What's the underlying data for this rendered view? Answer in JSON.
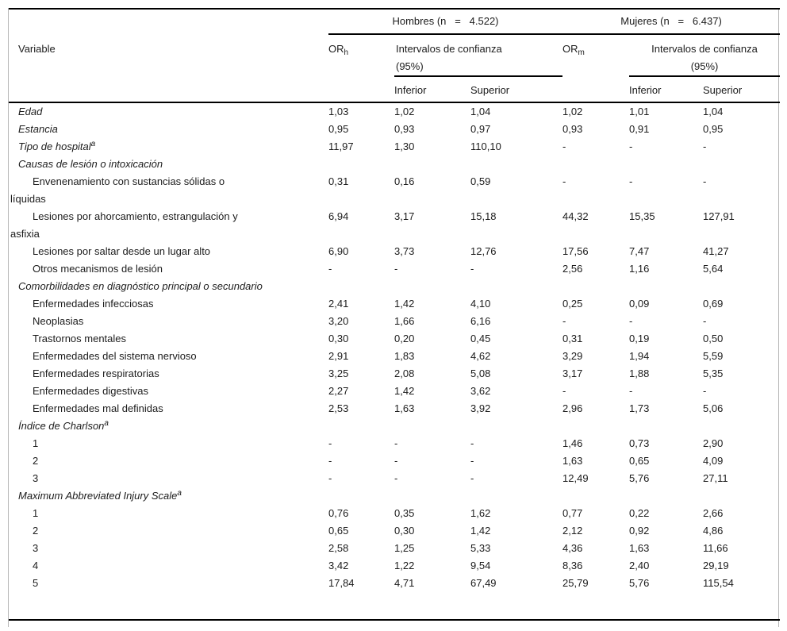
{
  "colors": {
    "rule": "#000000",
    "outer_border": "#b7b7b7",
    "text": "#1c1c1c"
  },
  "table": {
    "header": {
      "variable": "Variable",
      "groups": {
        "hombres": "Hombres (n   =   4.522)",
        "mujeres": "Mujeres (n   =   6.437)"
      },
      "or": "OR",
      "or_sub_h": "h",
      "or_sub_m": "m",
      "ci": "Intervalos de confianza",
      "ci_pct": "(95%)",
      "inferior": "Inferior",
      "superior": "Superior"
    },
    "rows": [
      {
        "label": "Edad",
        "values": [
          "1,03",
          "1,02",
          "1,04",
          "1,02",
          "1,01",
          "1,04"
        ]
      },
      {
        "label": "Estancia",
        "values": [
          "0,95",
          "0,93",
          "0,97",
          "0,93",
          "0,91",
          "0,95"
        ]
      },
      {
        "label": "Tipo de hospital",
        "sup": "a",
        "values": [
          "11,97",
          "1,30",
          "110,10",
          "-",
          "-",
          "-"
        ]
      },
      {
        "label": "Causas de lesión o intoxicación",
        "values": [
          "",
          "",
          "",
          "",
          "",
          ""
        ]
      },
      {
        "label": "Envenenamiento con sustancias sólidas o\nlíquidas",
        "values": [
          "0,31",
          "0,16",
          "0,59",
          "-",
          "-",
          "-"
        ]
      },
      {
        "label": "Lesiones por ahorcamiento, estrangulación y\nasfixia",
        "values": [
          "6,94",
          "3,17",
          "15,18",
          "44,32",
          "15,35",
          "127,91"
        ]
      },
      {
        "label": "Lesiones por saltar desde un lugar alto",
        "values": [
          "6,90",
          "3,73",
          "12,76",
          "17,56",
          "7,47",
          "41,27"
        ]
      },
      {
        "label": "Otros mecanismos de lesión",
        "values": [
          "-",
          "-",
          "-",
          "2,56",
          "1,16",
          "5,64"
        ]
      },
      {
        "label": "Comorbilidades en diagnóstico principal o secundario",
        "values": [
          "",
          "",
          "",
          "",
          "",
          ""
        ]
      },
      {
        "label": "Enfermedades infecciosas",
        "values": [
          "2,41",
          "1,42",
          "4,10",
          "0,25",
          "0,09",
          "0,69"
        ]
      },
      {
        "label": "Neoplasias",
        "values": [
          "3,20",
          "1,66",
          "6,16",
          "-",
          "-",
          "-"
        ]
      },
      {
        "label": "Trastornos mentales",
        "values": [
          "0,30",
          "0,20",
          "0,45",
          "0,31",
          "0,19",
          "0,50"
        ]
      },
      {
        "label": "Enfermedades del sistema nervioso",
        "values": [
          "2,91",
          "1,83",
          "4,62",
          "3,29",
          "1,94",
          "5,59"
        ]
      },
      {
        "label": "Enfermedades respiratorias",
        "values": [
          "3,25",
          "2,08",
          "5,08",
          "3,17",
          "1,88",
          "5,35"
        ]
      },
      {
        "label": "Enfermedades digestivas",
        "values": [
          "2,27",
          "1,42",
          "3,62",
          "-",
          "-",
          "-"
        ]
      },
      {
        "label": "Enfermedades mal definidas",
        "values": [
          "2,53",
          "1,63",
          "3,92",
          "2,96",
          "1,73",
          "5,06"
        ]
      },
      {
        "label": "Índice de Charlson",
        "sup": "a",
        "values": [
          "",
          "",
          "",
          "",
          "",
          ""
        ]
      },
      {
        "label": "1",
        "values": [
          "-",
          "-",
          "-",
          "1,46",
          "0,73",
          "2,90"
        ]
      },
      {
        "label": "2",
        "values": [
          "-",
          "-",
          "-",
          "1,63",
          "0,65",
          "4,09"
        ]
      },
      {
        "label": "3",
        "values": [
          "-",
          "-",
          "-",
          "12,49",
          "5,76",
          "27,11"
        ]
      },
      {
        "label": "Maximum Abbreviated Injury Scale",
        "sup": "a",
        "values": [
          "",
          "",
          "",
          "",
          "",
          ""
        ]
      },
      {
        "label": "1",
        "values": [
          "0,76",
          "0,35",
          "1,62",
          "0,77",
          "0,22",
          "2,66"
        ]
      },
      {
        "label": "2",
        "values": [
          "0,65",
          "0,30",
          "1,42",
          "2,12",
          "0,92",
          "4,86"
        ]
      },
      {
        "label": "3",
        "values": [
          "2,58",
          "1,25",
          "5,33",
          "4,36",
          "1,63",
          "11,66"
        ]
      },
      {
        "label": "4",
        "values": [
          "3,42",
          "1,22",
          "9,54",
          "8,36",
          "2,40",
          "29,19"
        ]
      },
      {
        "label": "5",
        "values": [
          "17,84",
          "4,71",
          "67,49",
          "25,79",
          "5,76",
          "115,54"
        ]
      }
    ]
  }
}
